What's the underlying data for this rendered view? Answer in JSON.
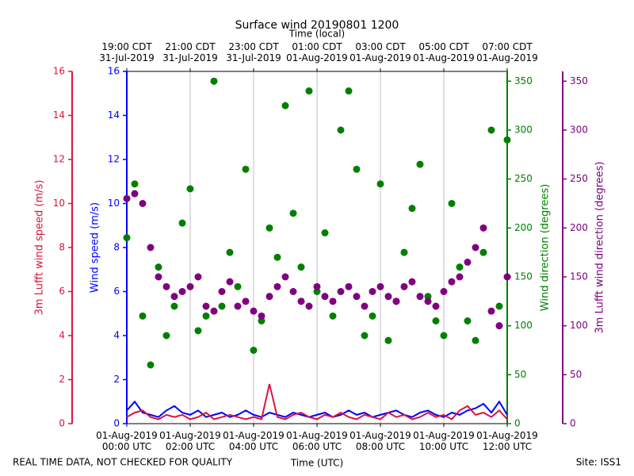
{
  "chart_data": {
    "type": "multi-axis",
    "title": "Surface wind 20190801 1200",
    "x2label": "Time (local)",
    "xlabel": "Time (UTC)",
    "footer_left": "REAL TIME DATA, NOT CHECKED FOR QUALITY",
    "footer_right": "Site: ISS1",
    "xlim": [
      "2019-08-01T00:00",
      "2019-08-01T12:00"
    ],
    "xticks": [
      {
        "value": "2019-08-01T00:00",
        "label": "01-Aug-2019\n00:00 UTC"
      },
      {
        "value": "2019-08-01T02:00",
        "label": "01-Aug-2019\n02:00 UTC"
      },
      {
        "value": "2019-08-01T04:00",
        "label": "01-Aug-2019\n04:00 UTC"
      },
      {
        "value": "2019-08-01T06:00",
        "label": "01-Aug-2019\n06:00 UTC"
      },
      {
        "value": "2019-08-01T08:00",
        "label": "01-Aug-2019\n08:00 UTC"
      },
      {
        "value": "2019-08-01T10:00",
        "label": "01-Aug-2019\n10:00 UTC"
      },
      {
        "value": "2019-08-01T12:00",
        "label": "01-Aug-2019\n12:00 UTC"
      }
    ],
    "x2ticks": [
      {
        "value": "2019-08-01T00:00",
        "label": "19:00 CDT\n31-Jul-2019"
      },
      {
        "value": "2019-08-01T02:00",
        "label": "21:00 CDT\n31-Jul-2019"
      },
      {
        "value": "2019-08-01T04:00",
        "label": "23:00 CDT\n31-Jul-2019"
      },
      {
        "value": "2019-08-01T06:00",
        "label": "01:00 CDT\n01-Aug-2019"
      },
      {
        "value": "2019-08-01T08:00",
        "label": "03:00 CDT\n01-Aug-2019"
      },
      {
        "value": "2019-08-01T10:00",
        "label": "05:00 CDT\n01-Aug-2019"
      },
      {
        "value": "2019-08-01T12:00",
        "label": "07:00 CDT\n01-Aug-2019"
      }
    ],
    "grid": true,
    "ylabel": "Wind speed (m/s)",
    "ycolor": "#0000ff",
    "ylim": [
      0,
      16
    ],
    "yticks": [
      0,
      2,
      4,
      6,
      8,
      10,
      12,
      14,
      16
    ],
    "y3label": "3m Lufft wind speed (m/s)",
    "y3color": "#dc143c",
    "y3lim": [
      0,
      16
    ],
    "y3ticks": [
      0,
      2,
      4,
      6,
      8,
      10,
      12,
      14,
      16
    ],
    "y2label": "Wind direction (degrees)",
    "y2color": "#008000",
    "y2lim": [
      0,
      360
    ],
    "y2ticks": [
      0,
      50,
      100,
      150,
      200,
      250,
      300,
      350
    ],
    "y4label": "3m Lufft wind direction (degrees)",
    "y4color": "#800080",
    "y4lim": [
      0,
      360
    ],
    "y4ticks": [
      0,
      50,
      100,
      150,
      200,
      250,
      300,
      350
    ],
    "x": [
      "2019-08-01T00:00",
      "2019-08-01T00:15",
      "2019-08-01T00:30",
      "2019-08-01T00:45",
      "2019-08-01T01:00",
      "2019-08-01T01:15",
      "2019-08-01T01:30",
      "2019-08-01T01:45",
      "2019-08-01T02:00",
      "2019-08-01T02:15",
      "2019-08-01T02:30",
      "2019-08-01T02:45",
      "2019-08-01T03:00",
      "2019-08-01T03:15",
      "2019-08-01T03:30",
      "2019-08-01T03:45",
      "2019-08-01T04:00",
      "2019-08-01T04:15",
      "2019-08-01T04:30",
      "2019-08-01T04:45",
      "2019-08-01T05:00",
      "2019-08-01T05:15",
      "2019-08-01T05:30",
      "2019-08-01T05:45",
      "2019-08-01T06:00",
      "2019-08-01T06:15",
      "2019-08-01T06:30",
      "2019-08-01T06:45",
      "2019-08-01T07:00",
      "2019-08-01T07:15",
      "2019-08-01T07:30",
      "2019-08-01T07:45",
      "2019-08-01T08:00",
      "2019-08-01T08:15",
      "2019-08-01T08:30",
      "2019-08-01T08:45",
      "2019-08-01T09:00",
      "2019-08-01T09:15",
      "2019-08-01T09:30",
      "2019-08-01T09:45",
      "2019-08-01T10:00",
      "2019-08-01T10:15",
      "2019-08-01T10:30",
      "2019-08-01T10:45",
      "2019-08-01T11:00",
      "2019-08-01T11:15",
      "2019-08-01T11:30",
      "2019-08-01T11:45",
      "2019-08-01T12:00"
    ],
    "series": [
      {
        "name": "Wind direction",
        "kind": "scatter",
        "axis": "y2",
        "color": "#008000",
        "values": [
          190,
          245,
          110,
          60,
          160,
          90,
          120,
          205,
          240,
          95,
          110,
          350,
          120,
          175,
          140,
          260,
          75,
          105,
          200,
          170,
          325,
          215,
          160,
          340,
          135,
          195,
          110,
          300,
          340,
          260,
          90,
          110,
          245,
          85,
          125,
          175,
          220,
          265,
          130,
          105,
          90,
          225,
          160,
          105,
          85,
          175,
          300,
          120,
          290
        ]
      },
      {
        "name": "3m Lufft wind direction",
        "kind": "scatter",
        "axis": "y4",
        "color": "#800080",
        "values": [
          230,
          235,
          225,
          180,
          150,
          140,
          130,
          135,
          140,
          150,
          120,
          115,
          135,
          145,
          120,
          125,
          115,
          110,
          130,
          140,
          150,
          135,
          125,
          120,
          140,
          130,
          125,
          135,
          140,
          130,
          120,
          135,
          140,
          130,
          125,
          140,
          145,
          130,
          125,
          120,
          135,
          145,
          150,
          165,
          180,
          200,
          115,
          100,
          150
        ]
      },
      {
        "name": "Wind speed",
        "kind": "line",
        "axis": "y",
        "color": "#0000ff",
        "values": [
          0.6,
          1.0,
          0.5,
          0.4,
          0.3,
          0.6,
          0.8,
          0.5,
          0.4,
          0.6,
          0.3,
          0.4,
          0.5,
          0.3,
          0.4,
          0.6,
          0.4,
          0.3,
          0.5,
          0.4,
          0.3,
          0.5,
          0.4,
          0.3,
          0.4,
          0.5,
          0.3,
          0.4,
          0.6,
          0.4,
          0.5,
          0.3,
          0.4,
          0.5,
          0.6,
          0.4,
          0.3,
          0.5,
          0.6,
          0.4,
          0.3,
          0.5,
          0.4,
          0.6,
          0.7,
          0.9,
          0.5,
          1.0,
          0.4
        ]
      },
      {
        "name": "3m Lufft wind speed",
        "kind": "line",
        "axis": "y3",
        "color": "#dc143c",
        "values": [
          0.3,
          0.5,
          0.6,
          0.3,
          0.2,
          0.4,
          0.3,
          0.4,
          0.2,
          0.3,
          0.5,
          0.2,
          0.3,
          0.4,
          0.3,
          0.2,
          0.3,
          0.2,
          1.8,
          0.3,
          0.2,
          0.4,
          0.5,
          0.3,
          0.2,
          0.4,
          0.3,
          0.5,
          0.3,
          0.2,
          0.4,
          0.3,
          0.2,
          0.5,
          0.3,
          0.4,
          0.2,
          0.3,
          0.5,
          0.3,
          0.4,
          0.2,
          0.6,
          0.8,
          0.4,
          0.5,
          0.3,
          0.6,
          0.2
        ]
      }
    ]
  }
}
